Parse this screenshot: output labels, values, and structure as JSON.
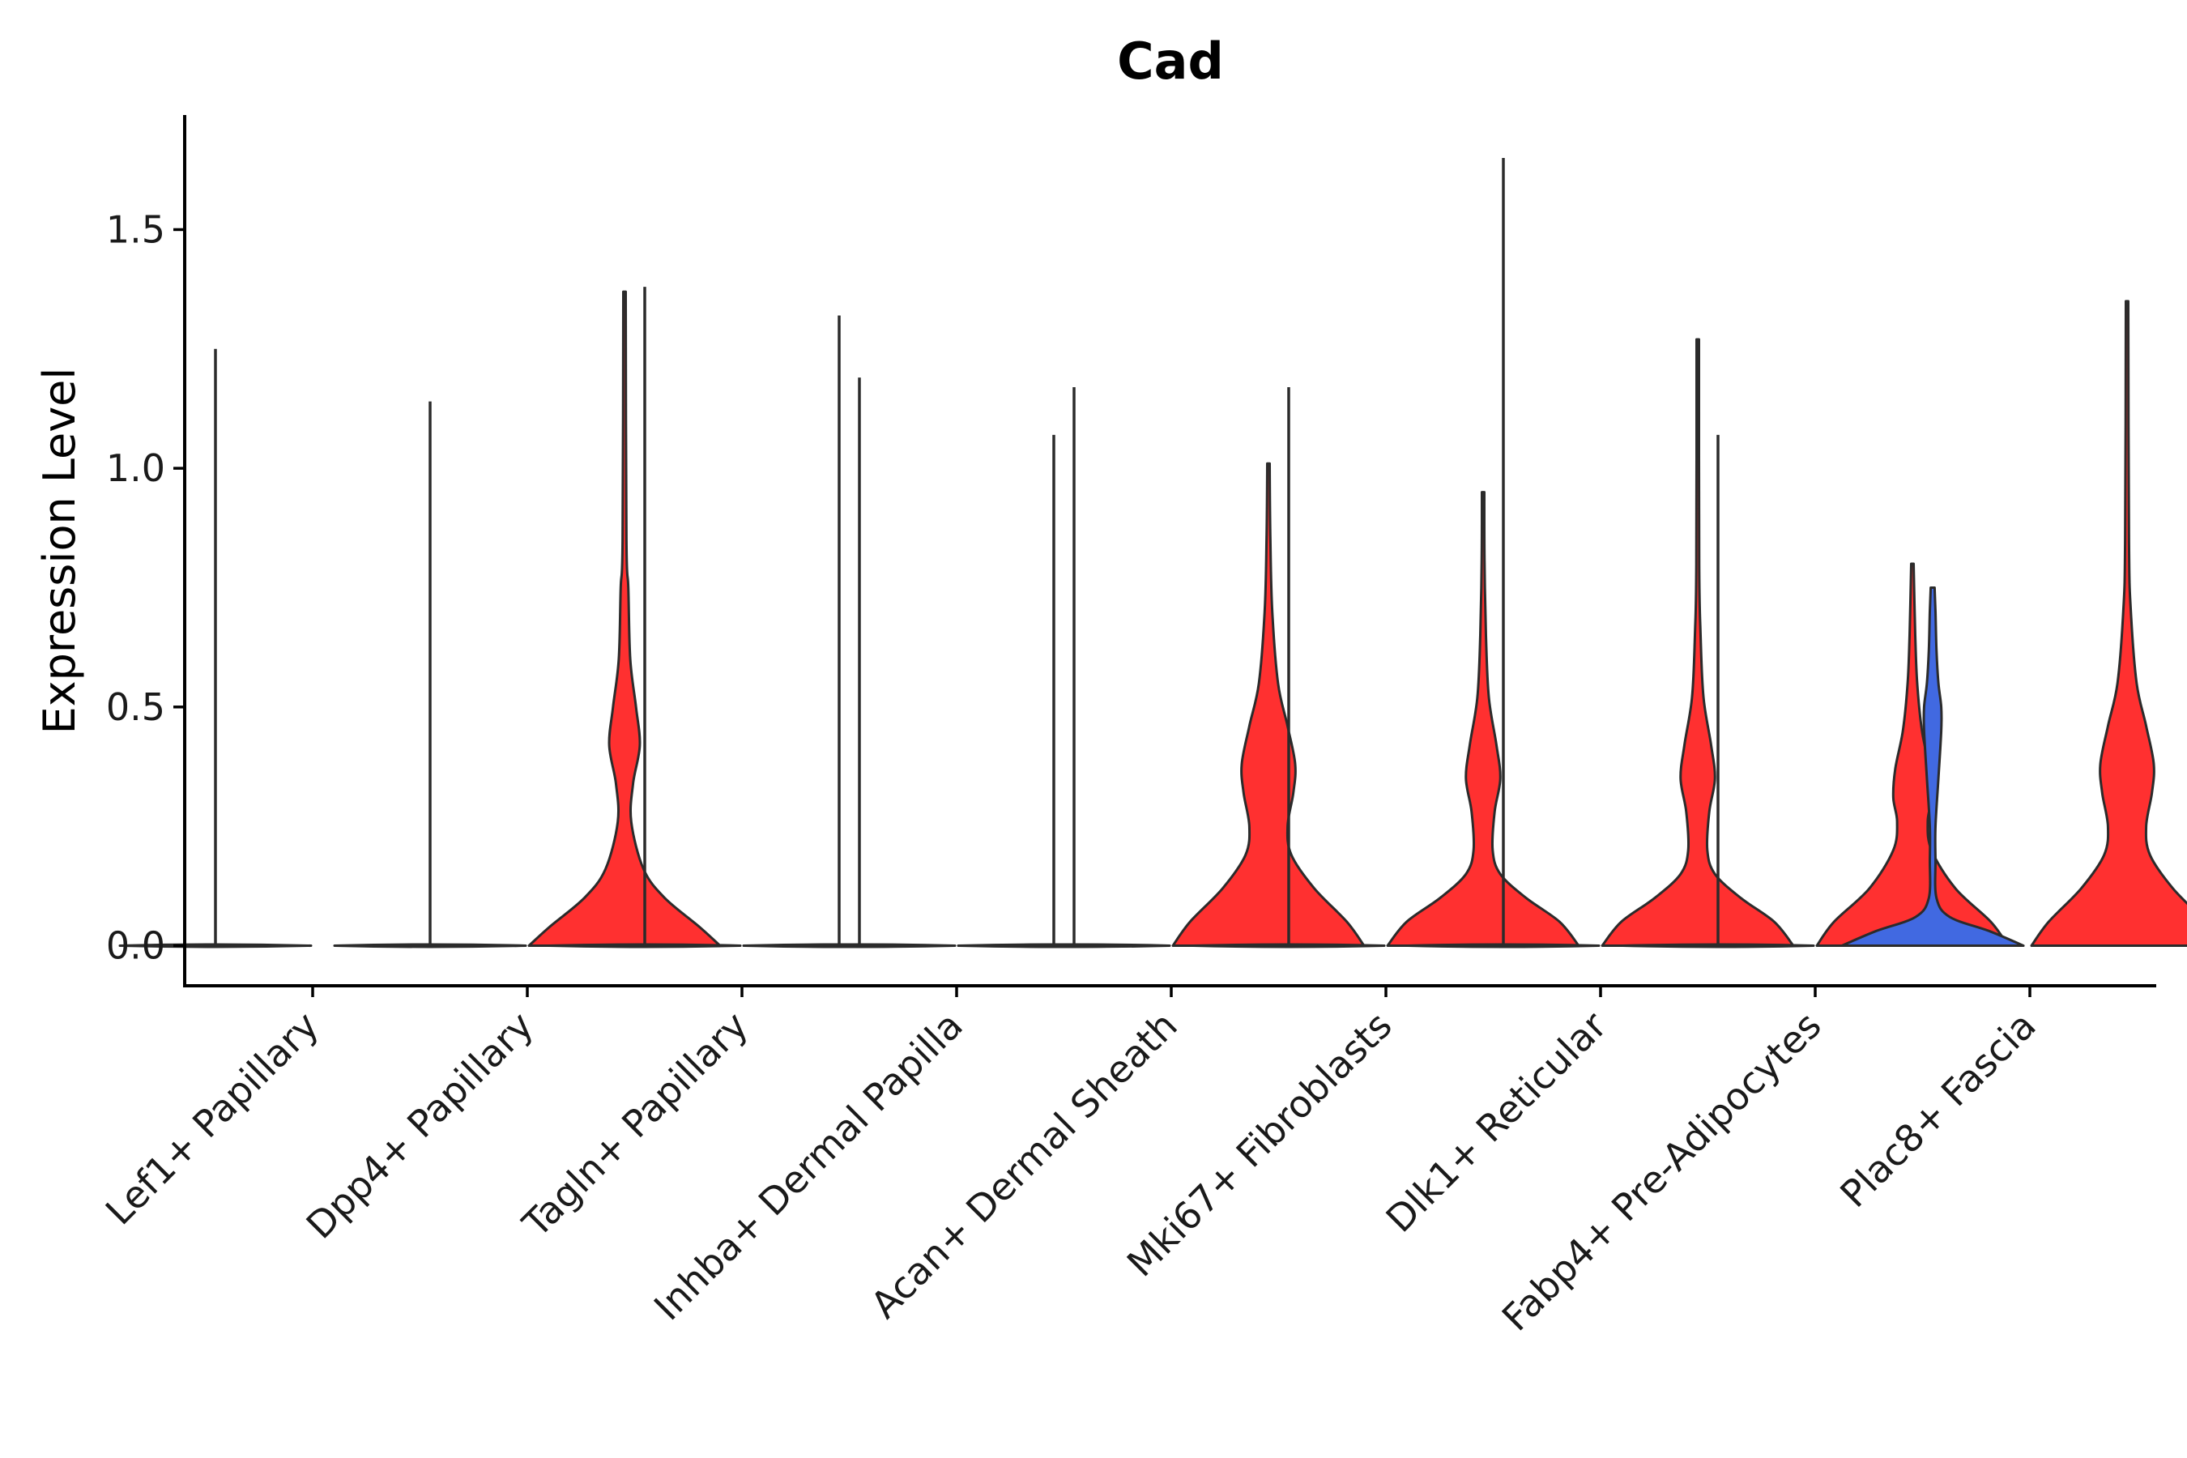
{
  "chart_data": {
    "type": "violin",
    "title": "Cad",
    "xlabel": "",
    "ylabel": "Expression Level",
    "ylim": [
      -0.084,
      1.74
    ],
    "yticks": [
      0.0,
      0.5,
      1.0,
      1.5
    ],
    "ytick_labels": [
      "0.0",
      "0.5",
      "1.0",
      "1.5"
    ],
    "legend": "none",
    "categories": [
      "Lef1+ Papillary",
      "Dpp4+ Papillary",
      "Tagln+ Papillary",
      "Inhba+ Dermal Papilla",
      "Acan+ Dermal Sheath",
      "Mki67+ Fibroblasts",
      "Dlk1+ Reticular",
      "Fabp4+ Pre-Adipocytes",
      "Plac8+ Fascia"
    ],
    "colors": {
      "red": "#ff3030",
      "blue": "#4169e1",
      "outline": "#2b2b2b"
    },
    "violins": [
      {
        "category": "Lef1+ Papillary",
        "side": "left",
        "max": 1.25,
        "color": "none",
        "shape": "flat"
      },
      {
        "category": "Dpp4+ Papillary",
        "side": "left",
        "max": 1.14,
        "color": "none",
        "shape": "flat"
      },
      {
        "category": "Dpp4+ Papillary",
        "side": "right",
        "max": 1.37,
        "color": "red",
        "shape": "dpp4"
      },
      {
        "category": "Tagln+ Papillary",
        "side": "left",
        "max": 1.38,
        "color": "none",
        "shape": "flat"
      },
      {
        "category": "Tagln+ Papillary",
        "side": "right",
        "max": 1.32,
        "color": "none",
        "shape": "flat"
      },
      {
        "category": "Inhba+ Dermal Papilla",
        "side": "left",
        "max": 1.19,
        "color": "none",
        "shape": "flat"
      },
      {
        "category": "Inhba+ Dermal Papilla",
        "side": "right",
        "max": 1.07,
        "color": "none",
        "shape": "flat"
      },
      {
        "category": "Acan+ Dermal Sheath",
        "side": "left",
        "max": 1.17,
        "color": "none",
        "shape": "flat"
      },
      {
        "category": "Acan+ Dermal Sheath",
        "side": "right",
        "max": 1.01,
        "color": "red",
        "shape": "wide"
      },
      {
        "category": "Mki67+ Fibroblasts",
        "side": "left",
        "max": 1.17,
        "color": "none",
        "shape": "flat"
      },
      {
        "category": "Mki67+ Fibroblasts",
        "side": "right",
        "max": 0.95,
        "color": "red",
        "shape": "mid"
      },
      {
        "category": "Dlk1+ Reticular",
        "side": "left",
        "max": 1.65,
        "color": "none",
        "shape": "flat"
      },
      {
        "category": "Dlk1+ Reticular",
        "side": "right",
        "max": 1.27,
        "color": "red",
        "shape": "mid"
      },
      {
        "category": "Fabp4+ Pre-Adipocytes",
        "side": "left",
        "max": 1.07,
        "color": "none",
        "shape": "flat"
      },
      {
        "category": "Fabp4+ Pre-Adipocytes",
        "side": "right",
        "max": 0.8,
        "color": "red",
        "shape": "fabp4"
      },
      {
        "category": "Plac8+ Fascia",
        "side": "left",
        "max": 0.75,
        "color": "blue",
        "shape": "plac8blue"
      },
      {
        "category": "Plac8+ Fascia",
        "side": "right",
        "max": 1.35,
        "color": "red",
        "shape": "wide"
      }
    ]
  }
}
